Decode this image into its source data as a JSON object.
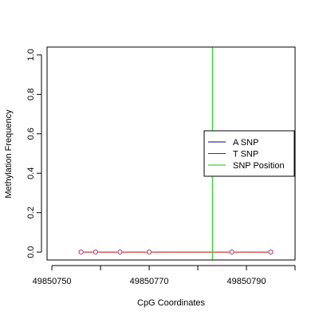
{
  "chart_data": {
    "type": "line",
    "title": "",
    "xlabel": "CpG Coordinates",
    "ylabel": "Methylation Frequency",
    "xlim": [
      49850749,
      49850800
    ],
    "ylim": [
      -0.04,
      1.04
    ],
    "x_ticks": [
      49850750,
      49850770,
      49850790
    ],
    "x_minor_ticks": [
      49850760,
      49850780,
      49850800
    ],
    "y_ticks": [
      0.0,
      0.2,
      0.4,
      0.6,
      0.8,
      1.0
    ],
    "y_tick_labels": [
      "0.0",
      "0.2",
      "0.4",
      "0.6",
      "0.8",
      "1.0"
    ],
    "grid": false,
    "legend_position": "right",
    "series": [
      {
        "name": "A SNP",
        "color": "#000080",
        "marker": "none",
        "x": [],
        "y": []
      },
      {
        "name": "T SNP",
        "color": "#cc0000",
        "marker": "circle",
        "x": [
          49850756,
          49850759,
          49850764,
          49850770,
          49850787,
          49850795
        ],
        "y": [
          0.0,
          0.0,
          0.0,
          0.0,
          0.0,
          0.0
        ]
      },
      {
        "name": "SNP Position",
        "color": "#00cc00",
        "marker": "none",
        "vline_x": 49850783
      }
    ],
    "marker_color": "#b03060"
  }
}
